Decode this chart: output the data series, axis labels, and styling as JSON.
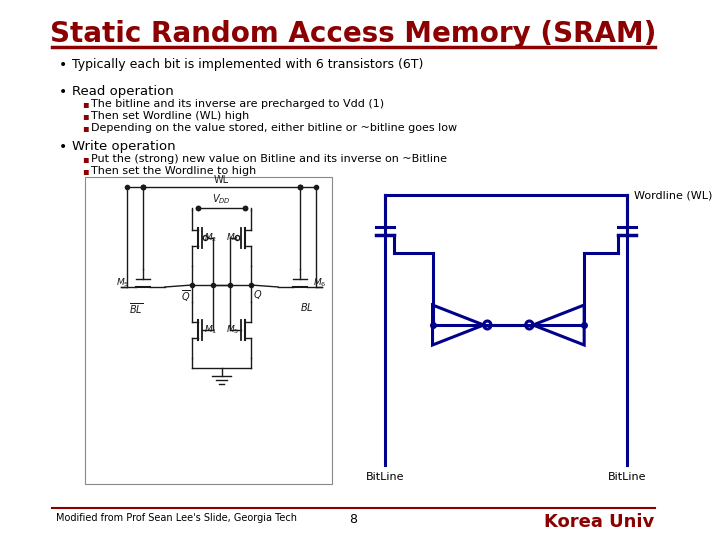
{
  "title": "Static Random Access Memory (SRAM)",
  "title_color": "#8B0000",
  "title_fontsize": 20,
  "bg_color": "#FFFFFF",
  "rule_color": "#8B0000",
  "bullet1": "Typically each bit is implemented with 6 transistors (6T)",
  "bullet2_main": "Read operation",
  "bullet2_sub": [
    "The bitline and its inverse are precharged to Vdd (1)",
    "Then set Wordline (WL) high",
    "Depending on the value stored, either bitline or ~bitline goes low"
  ],
  "bullet3_main": "Write operation",
  "bullet3_sub": [
    "Put the (strong) new value on Bitline and its inverse on ~Bitline",
    "Then set the Wordline to high"
  ],
  "footer_left": "Modified from Prof Sean Lee's Slide, Georgia Tech",
  "footer_center": "8",
  "footer_right": "Korea Univ",
  "footer_right_color": "#8B0000",
  "circuit_color": "#00008B",
  "text_color": "#000000",
  "sub_bullet_color": "#8B0000",
  "wordline_label": "Wordline (WL)",
  "bitline_left": "BitLine",
  "bitline_right": "BitLine"
}
